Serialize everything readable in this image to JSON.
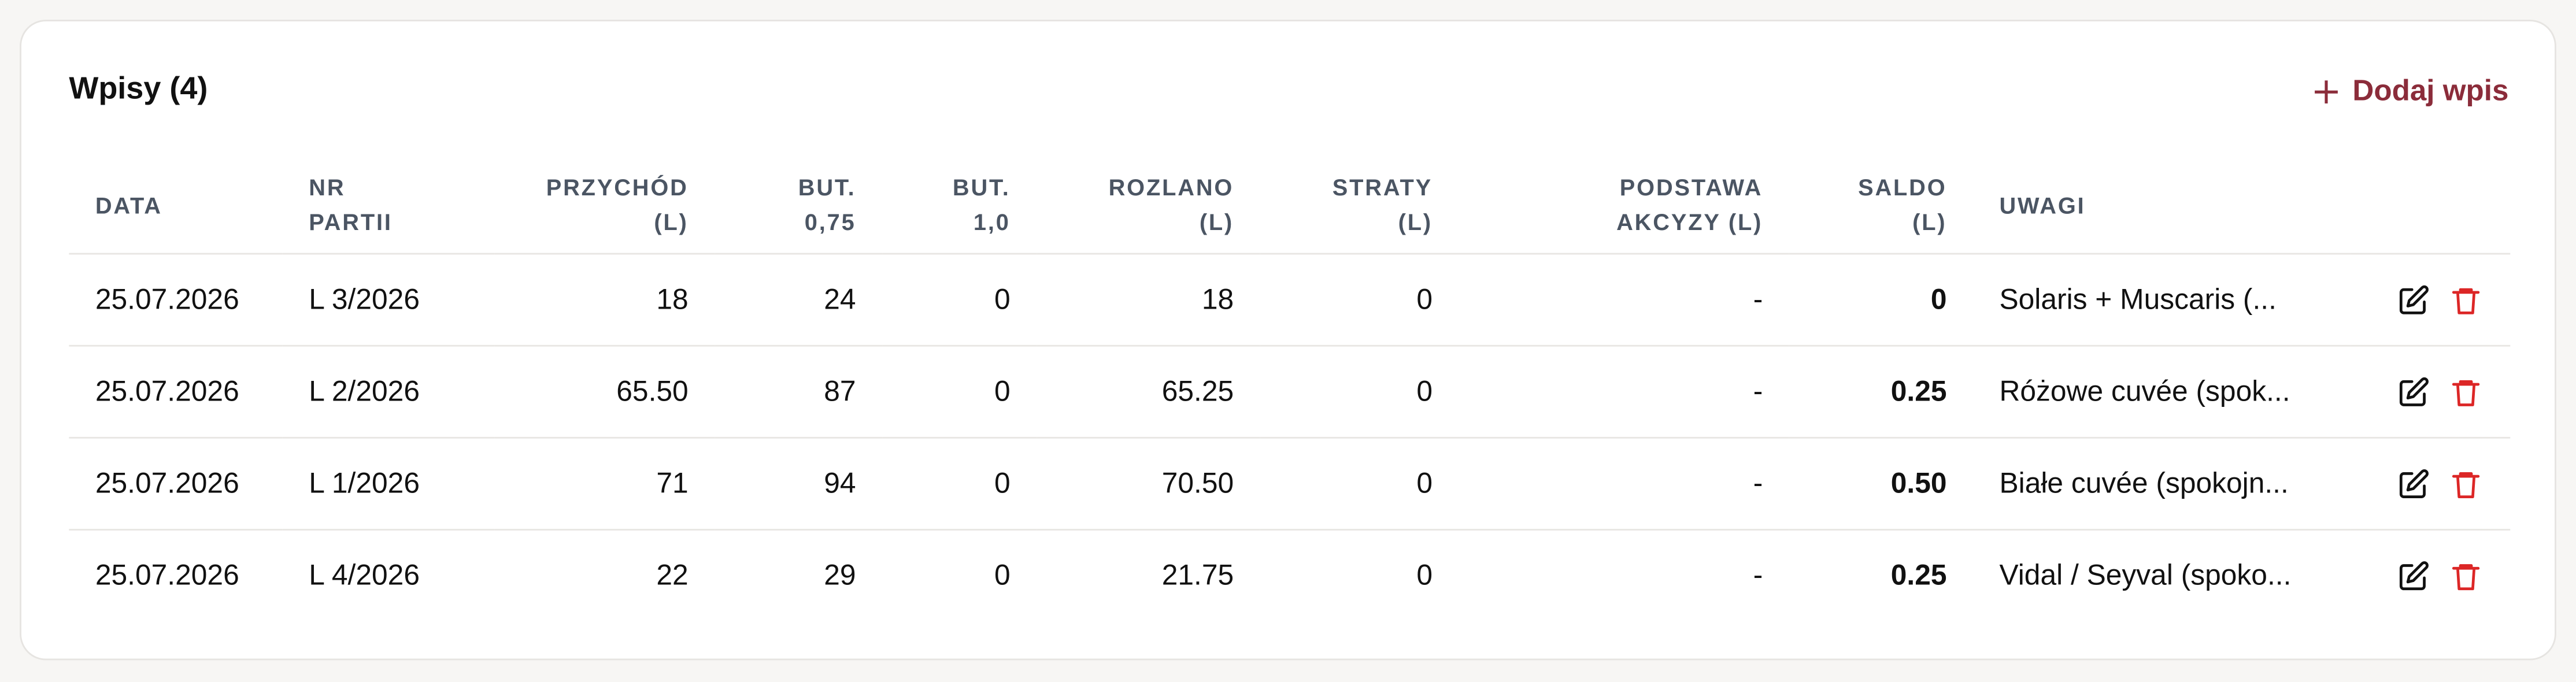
{
  "header": {
    "title": "Wpisy (4)",
    "action": "Dodaj wpis"
  },
  "table": {
    "columns": [
      "DATA",
      "NR\nPARTII",
      "PRZYCHÓD\n(L)",
      "BUT.\n0,75",
      "BUT.\n1,0",
      "ROZLANO\n(L)",
      "STRATY\n(L)",
      "PODSTAWA\nAKCYZY (L)",
      "SALDO\n(L)",
      "UWAGI"
    ],
    "rows": [
      [
        "25.07.2026",
        "L 3/2026",
        "18",
        "24",
        "0",
        "18",
        "0",
        "-",
        "0",
        "Solaris + Muscaris (..."
      ],
      [
        "25.07.2026",
        "L 2/2026",
        "65.50",
        "87",
        "0",
        "65.25",
        "0",
        "-",
        "0.25",
        "Różowe cuvée (spok..."
      ],
      [
        "25.07.2026",
        "L 1/2026",
        "71",
        "94",
        "0",
        "70.50",
        "0",
        "-",
        "0.50",
        "Białe cuvée (spokojn..."
      ],
      [
        "25.07.2026",
        "L 4/2026",
        "22",
        "29",
        "0",
        "21.75",
        "0",
        "-",
        "0.25",
        "Vidal / Seyval (spoko..."
      ]
    ]
  }
}
